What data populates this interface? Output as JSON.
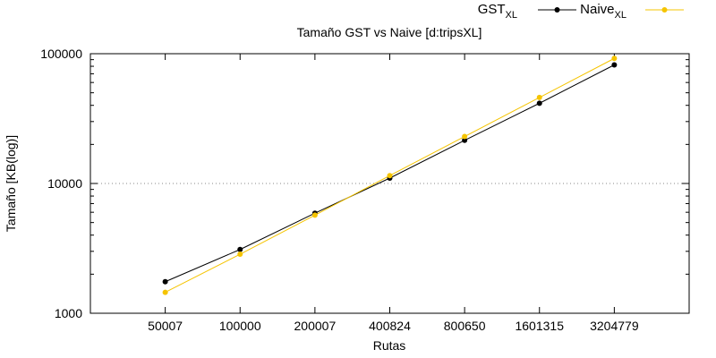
{
  "chart_data": {
    "type": "line",
    "title": "Tamaño GST vs Naive [d:tripsXL]",
    "xlabel": "Rutas",
    "ylabel": "Tamaño [KB(log)]",
    "y_scale": "log",
    "ylim": [
      1000,
      100000
    ],
    "y_ticks": [
      "1000",
      "10000",
      "100000"
    ],
    "grid": "horizontal dotted at 10000",
    "legend_position": "top-right",
    "categories": [
      "50007",
      "100000",
      "200007",
      "400824",
      "800650",
      "1601315",
      "3204779"
    ],
    "series": [
      {
        "name_main": "GST",
        "name_sub": "XL",
        "color": "#000000",
        "values": [
          1750,
          3100,
          5900,
          11000,
          21500,
          41500,
          82000
        ]
      },
      {
        "name_main": "Naive",
        "name_sub": "XL",
        "color": "#f5c400",
        "values": [
          1450,
          2850,
          5700,
          11500,
          23000,
          46000,
          92000
        ]
      }
    ]
  }
}
